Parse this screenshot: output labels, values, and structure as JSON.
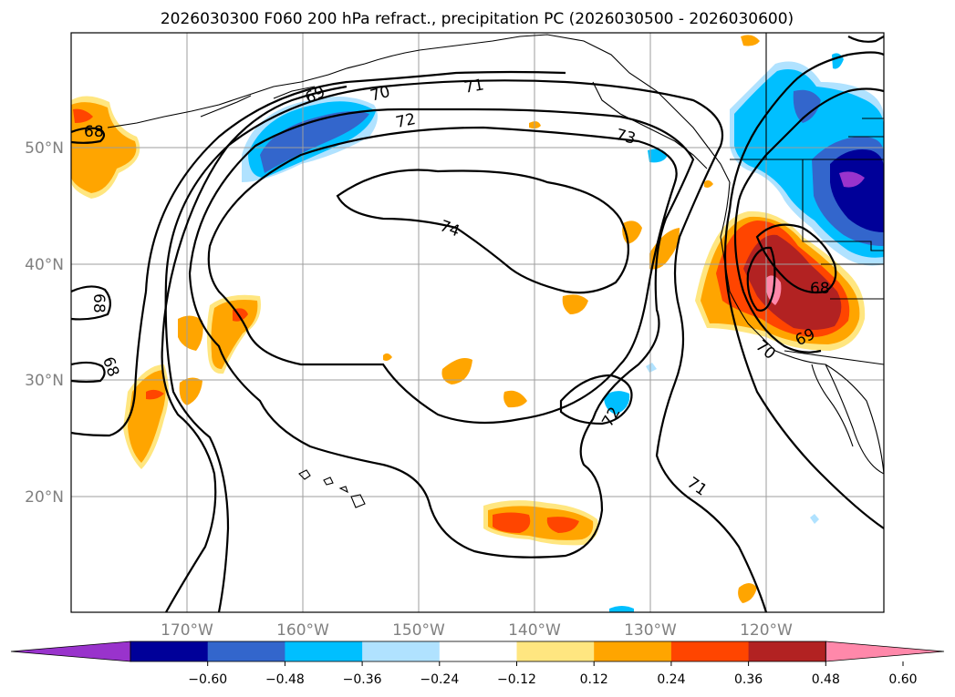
{
  "title": "2026030300 F060 200 hPa refract., precipitation PC (2026030500 - 2026030600)",
  "lat_labels": [
    "50°N",
    "40°N",
    "30°N",
    "20°N"
  ],
  "lon_labels": [
    "170°W",
    "160°W",
    "150°W",
    "140°W",
    "130°W",
    "120°W"
  ],
  "colorbar": {
    "ticks": [
      "−0.60",
      "−0.48",
      "−0.36",
      "−0.24",
      "−0.12",
      "0.12",
      "0.24",
      "0.36",
      "0.48",
      "0.60"
    ],
    "colors": [
      "#9933cc",
      "#000099",
      "#3366cc",
      "#00bfff",
      "#b0e2ff",
      "#ffffff",
      "#ffe680",
      "#ffa500",
      "#ff4500",
      "#b22222",
      "#ff88aa"
    ]
  },
  "contour_labels": [
    {
      "text": "68"
    },
    {
      "text": "69"
    },
    {
      "text": "70"
    },
    {
      "text": "71"
    },
    {
      "text": "72"
    },
    {
      "text": "73"
    },
    {
      "text": "74"
    },
    {
      "text": "68"
    },
    {
      "text": "68"
    },
    {
      "text": "72"
    },
    {
      "text": "71"
    },
    {
      "text": "68"
    },
    {
      "text": "69"
    },
    {
      "text": "70"
    }
  ]
}
